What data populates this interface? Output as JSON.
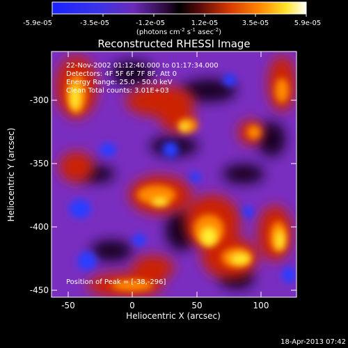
{
  "colorbar": {
    "ticks": [
      "-5.9e-05",
      "-3.5e-05",
      "-1.2e-05",
      "1.2e-05",
      "3.5e-05",
      "5.9e-05"
    ],
    "units_pre": "(photons cm",
    "units_sup1": "-2",
    "units_mid": " s",
    "units_sup2": "-1",
    "units_mid2": " asec",
    "units_sup3": "-2",
    "units_post": ")"
  },
  "title": "Reconstructed RHESSI Image",
  "annotations": {
    "time": "22-Nov-2002 01:12:40.000 to 01:17:34.000",
    "detectors": "Detectors: 4F 5F 6F 7F 8F, Att 0",
    "energy": "Energy Range: 25.0 - 50.0 keV",
    "clean": "Clean   Total counts: 3.01E+03",
    "peak": "Position of Peak = [-38,-296]"
  },
  "axes": {
    "xlabel": "Heliocentric X (arcsec)",
    "ylabel": "Heliocentric Y (arcsec)",
    "xticks": [
      "-50",
      "0",
      "50",
      "100"
    ],
    "yticks": [
      "-300",
      "-350",
      "-400",
      "-450"
    ],
    "xlim": [
      -65,
      125
    ],
    "ylim": [
      -455,
      -272
    ]
  },
  "footer": {
    "timestamp": "18-Apr-2013 07:42"
  },
  "colors": {
    "min": "#1a2cff",
    "mid": "#000000",
    "max": "#ffffff",
    "orange": "#ff7a00",
    "yellow": "#ffe800"
  }
}
